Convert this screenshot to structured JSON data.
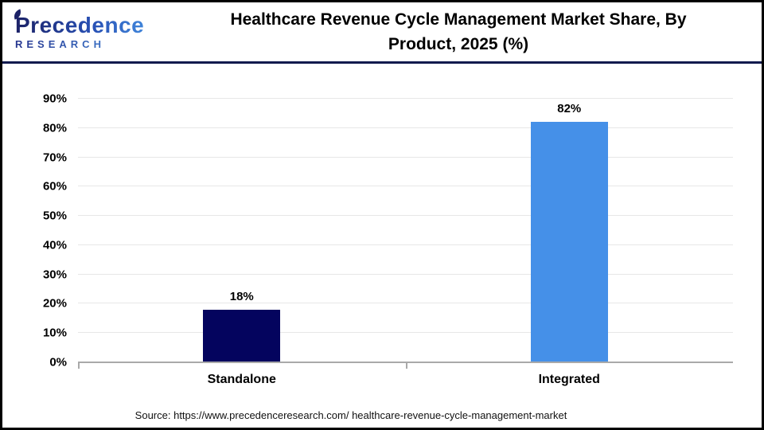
{
  "header": {
    "logo": {
      "name": "Precedence",
      "subtitle": "RESEARCH"
    },
    "title": "Healthcare Revenue Cycle Management Market Share, By Product, 2025 (%)",
    "title_line1": "Healthcare Revenue Cycle Management Market Share, By",
    "title_line2": "Product, 2025 (%)"
  },
  "chart_data": {
    "type": "bar",
    "title": "Healthcare Revenue Cycle Management Market Share, By Product, 2025 (%)",
    "categories": [
      "Standalone",
      "Integrated"
    ],
    "values": [
      18,
      82
    ],
    "value_labels": [
      "18%",
      "82%"
    ],
    "bar_colors": [
      "#04045e",
      "#4590e8"
    ],
    "unit": "%",
    "xlabel": "",
    "ylabel": "",
    "ylim": [
      0,
      90
    ],
    "yticks": [
      0,
      10,
      20,
      30,
      40,
      50,
      60,
      70,
      80,
      90
    ],
    "ytick_labels": [
      "0%",
      "10%",
      "20%",
      "30%",
      "40%",
      "50%",
      "60%",
      "70%",
      "80%",
      "90%"
    ],
    "grid": true,
    "legend": "none"
  },
  "footer": {
    "source": "Source: https://www.precedenceresearch.com/ healthcare-revenue-cycle-management-market"
  },
  "colors": {
    "divider_navy": "#101a4e",
    "axis_gray": "#a9a9a9",
    "gridline_gray": "#e7e7e7",
    "standalone_bar": "#04045e",
    "integrated_bar": "#4590e8",
    "logo_dark": "#1b2166",
    "logo_blue": "#4590e2"
  }
}
